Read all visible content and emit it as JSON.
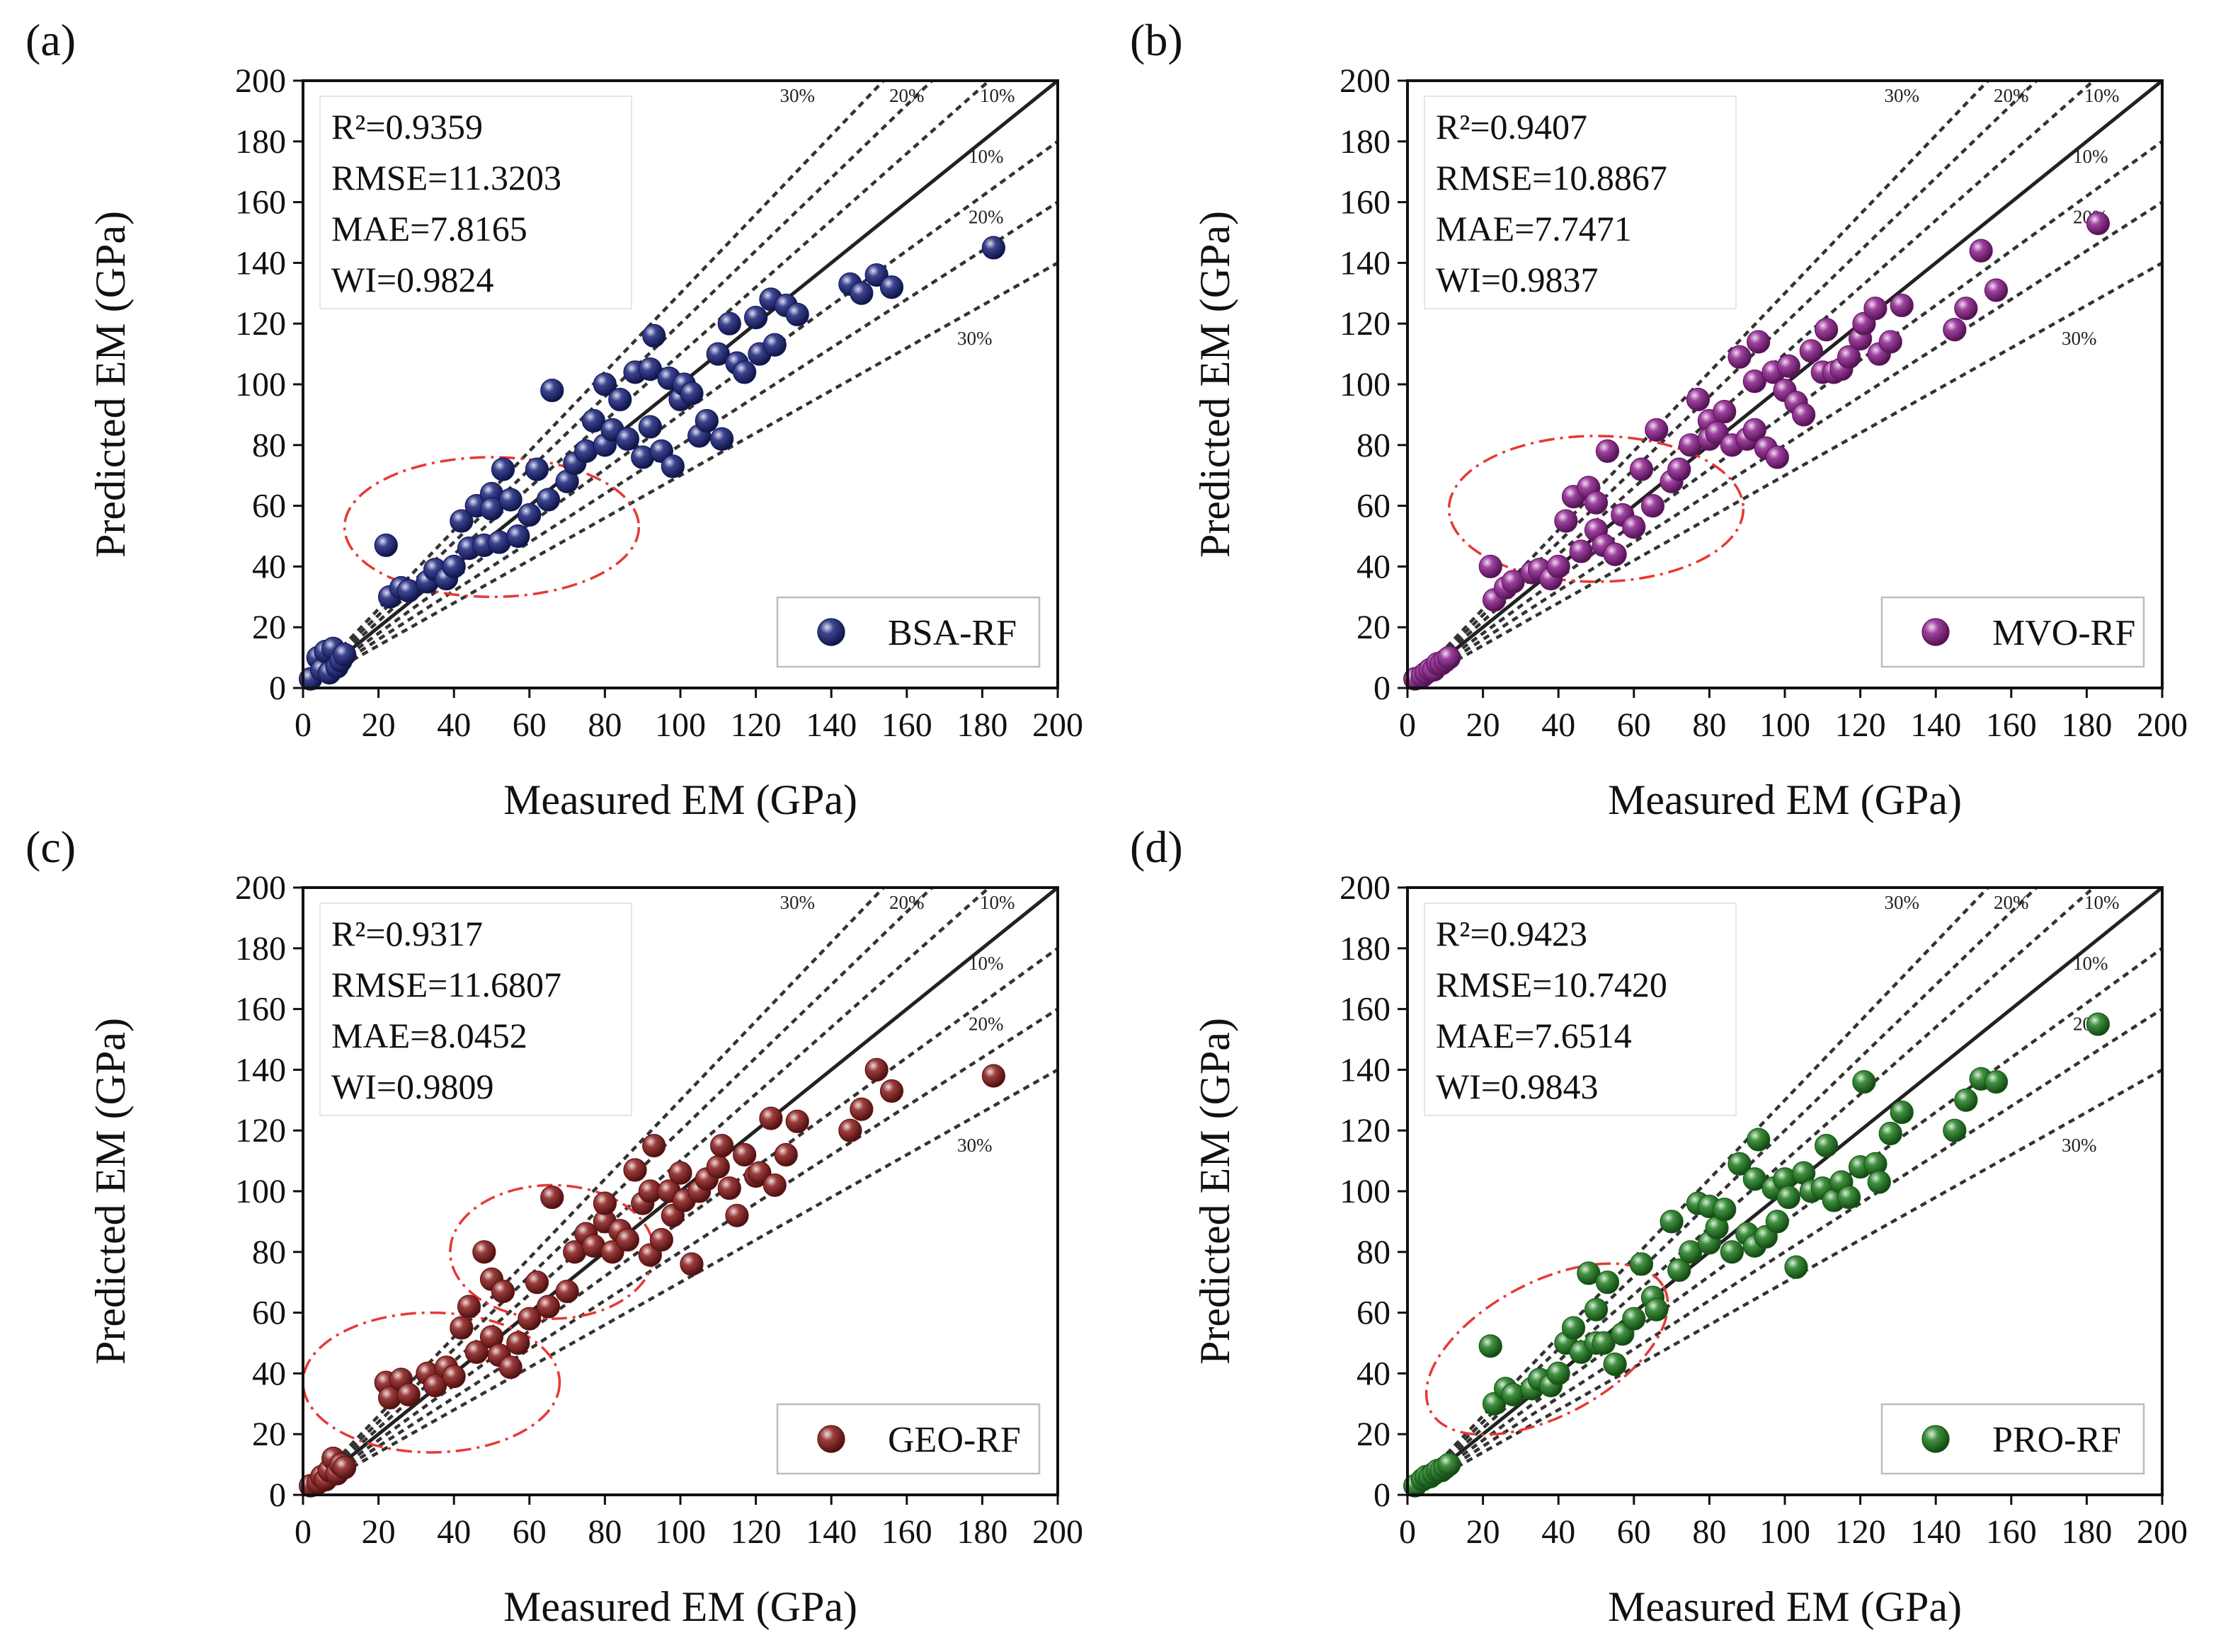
{
  "figure": {
    "xlabel": "Measured EM (GPa)",
    "ylabel": "Predicted EM (GPa)",
    "xticks": [
      0,
      20,
      40,
      60,
      80,
      100,
      120,
      140,
      160,
      180,
      200
    ],
    "yticks": [
      0,
      20,
      40,
      60,
      80,
      100,
      120,
      140,
      160,
      180,
      200
    ],
    "guide_labels": {
      "top": [
        "30%",
        "20%",
        "10%"
      ],
      "right": [
        "10%",
        "20%",
        "30%"
      ]
    }
  },
  "chart_data": [
    {
      "type": "scatter",
      "panel_label": "(a)",
      "legend": "BSA-RF",
      "color": "#1a237e",
      "stats": {
        "r2": "R²=0.9359",
        "rmse": "RMSE=11.3203",
        "mae": "MAE=7.8165",
        "wi": "WI=0.9824"
      },
      "xlabel": "Measured EM (GPa)",
      "ylabel": "Predicted EM (GPa)",
      "xlim": [
        0,
        200
      ],
      "ylim": [
        0,
        200
      ],
      "ellipses": [
        {
          "cx": 50,
          "cy": 53,
          "rx": 39,
          "ry": 23
        }
      ],
      "x": [
        2,
        4,
        5,
        6,
        7,
        8,
        9,
        10,
        11,
        22,
        23,
        26,
        28,
        33,
        35,
        38,
        40,
        42,
        44,
        46,
        48,
        50,
        50,
        52,
        53,
        55,
        57,
        60,
        62,
        65,
        66,
        70,
        72,
        75,
        77,
        80,
        80,
        82,
        84,
        86,
        88,
        90,
        92,
        92,
        93,
        95,
        97,
        98,
        100,
        101,
        103,
        105,
        107,
        110,
        111,
        113,
        115,
        117,
        120,
        121,
        124,
        125,
        128,
        131,
        145,
        148,
        152,
        156,
        183
      ],
      "y": [
        3,
        10,
        6,
        12,
        5,
        13,
        7,
        9,
        11,
        47,
        30,
        33,
        32,
        35,
        39,
        36,
        40,
        55,
        46,
        60,
        47,
        64,
        59,
        48,
        72,
        62,
        50,
        57,
        72,
        62,
        98,
        68,
        74,
        78,
        88,
        100,
        80,
        85,
        95,
        82,
        104,
        76,
        105,
        86,
        116,
        78,
        102,
        73,
        95,
        100,
        97,
        83,
        88,
        110,
        82,
        120,
        107,
        104,
        122,
        110,
        128,
        113,
        126,
        123,
        133,
        130,
        136,
        132,
        145
      ]
    },
    {
      "type": "scatter",
      "panel_label": "(b)",
      "legend": "MVO-RF",
      "color": "#8e1f8e",
      "stats": {
        "r2": "R²=0.9407",
        "rmse": "RMSE=10.8867",
        "mae": "MAE=7.7471",
        "wi": "WI=0.9837"
      },
      "xlabel": "Measured EM (GPa)",
      "ylabel": "Predicted EM (GPa)",
      "xlim": [
        0,
        200
      ],
      "ylim": [
        0,
        200
      ],
      "ellipses": [
        {
          "cx": 50,
          "cy": 59,
          "rx": 39,
          "ry": 24
        }
      ],
      "x": [
        2,
        4,
        5,
        6,
        7,
        8,
        9,
        10,
        11,
        22,
        23,
        26,
        28,
        33,
        35,
        38,
        40,
        42,
        44,
        46,
        48,
        50,
        50,
        52,
        53,
        55,
        57,
        60,
        62,
        65,
        66,
        70,
        72,
        75,
        77,
        80,
        80,
        82,
        84,
        86,
        88,
        90,
        92,
        92,
        93,
        95,
        97,
        98,
        100,
        101,
        103,
        105,
        107,
        110,
        111,
        113,
        115,
        117,
        120,
        121,
        124,
        125,
        128,
        131,
        145,
        148,
        152,
        156,
        183
      ],
      "y": [
        3,
        4,
        5,
        6,
        6,
        8,
        8,
        9,
        10,
        40,
        29,
        33,
        35,
        38,
        39,
        36,
        40,
        55,
        63,
        45,
        66,
        52,
        61,
        47,
        78,
        44,
        57,
        53,
        72,
        60,
        85,
        68,
        72,
        80,
        95,
        88,
        82,
        84,
        91,
        80,
        109,
        82,
        101,
        85,
        114,
        79,
        104,
        76,
        98,
        106,
        94,
        90,
        111,
        104,
        118,
        104,
        105,
        109,
        115,
        120,
        125,
        110,
        114,
        126,
        118,
        125,
        144,
        131,
        153
      ]
    },
    {
      "type": "scatter",
      "panel_label": "(c)",
      "legend": "GEO-RF",
      "color": "#8b1a1a",
      "stats": {
        "r2": "R²=0.9317",
        "rmse": "RMSE=11.6807",
        "mae": "MAE=8.0452",
        "wi": "WI=0.9809"
      },
      "xlabel": "Measured EM (GPa)",
      "ylabel": "Predicted EM (GPa)",
      "xlim": [
        0,
        200
      ],
      "ylim": [
        0,
        200
      ],
      "ellipses": [
        {
          "cx": 34,
          "cy": 37,
          "rx": 34,
          "ry": 23
        },
        {
          "cx": 66,
          "cy": 80,
          "rx": 27,
          "ry": 22
        }
      ],
      "x": [
        2,
        4,
        5,
        6,
        7,
        8,
        9,
        10,
        11,
        22,
        23,
        26,
        28,
        33,
        35,
        38,
        40,
        42,
        44,
        46,
        48,
        50,
        50,
        52,
        53,
        55,
        57,
        60,
        62,
        65,
        66,
        70,
        72,
        75,
        77,
        80,
        80,
        82,
        84,
        86,
        88,
        90,
        92,
        92,
        93,
        95,
        97,
        98,
        100,
        101,
        103,
        105,
        107,
        110,
        111,
        113,
        115,
        117,
        120,
        121,
        124,
        125,
        128,
        131,
        145,
        148,
        152,
        156,
        183
      ],
      "y": [
        3,
        4,
        6,
        5,
        8,
        12,
        7,
        10,
        9,
        37,
        32,
        38,
        33,
        40,
        36,
        42,
        39,
        55,
        62,
        47,
        80,
        52,
        71,
        46,
        67,
        42,
        50,
        58,
        70,
        62,
        98,
        67,
        80,
        86,
        82,
        90,
        96,
        80,
        87,
        84,
        107,
        96,
        100,
        79,
        115,
        84,
        100,
        92,
        106,
        97,
        76,
        100,
        104,
        108,
        115,
        101,
        92,
        112,
        105,
        106,
        124,
        102,
        112,
        123,
        120,
        127,
        140,
        133,
        138
      ]
    },
    {
      "type": "scatter",
      "panel_label": "(d)",
      "legend": "PRO-RF",
      "color": "#1e7d1e",
      "stats": {
        "r2": "R²=0.9423",
        "rmse": "RMSE=10.7420",
        "mae": "MAE=7.6514",
        "wi": "WI=0.9843"
      },
      "xlabel": "Measured EM (GPa)",
      "ylabel": "Predicted EM (GPa)",
      "xlim": [
        0,
        200
      ],
      "ylim": [
        0,
        200
      ],
      "ellipses": [
        {
          "cx": 37,
          "cy": 48,
          "rx": 35,
          "ry": 22,
          "rotate": -28
        }
      ],
      "x": [
        2,
        4,
        5,
        6,
        7,
        8,
        9,
        10,
        11,
        22,
        23,
        26,
        28,
        33,
        35,
        38,
        40,
        42,
        44,
        46,
        48,
        50,
        50,
        52,
        53,
        55,
        57,
        60,
        62,
        65,
        66,
        70,
        72,
        75,
        77,
        80,
        80,
        82,
        84,
        86,
        88,
        90,
        92,
        92,
        93,
        95,
        97,
        98,
        100,
        101,
        103,
        105,
        107,
        110,
        111,
        113,
        115,
        117,
        120,
        121,
        124,
        125,
        128,
        131,
        145,
        148,
        152,
        156,
        183
      ],
      "y": [
        3,
        5,
        6,
        6,
        7,
        8,
        8,
        9,
        10,
        49,
        30,
        35,
        33,
        35,
        38,
        36,
        40,
        50,
        55,
        47,
        73,
        50,
        61,
        50,
        70,
        43,
        53,
        58,
        76,
        65,
        61,
        90,
        74,
        80,
        96,
        83,
        95,
        88,
        94,
        80,
        109,
        86,
        104,
        82,
        117,
        85,
        101,
        90,
        104,
        98,
        75,
        106,
        100,
        101,
        115,
        97,
        103,
        98,
        108,
        136,
        109,
        103,
        119,
        126,
        120,
        130,
        137,
        136,
        155
      ]
    }
  ]
}
